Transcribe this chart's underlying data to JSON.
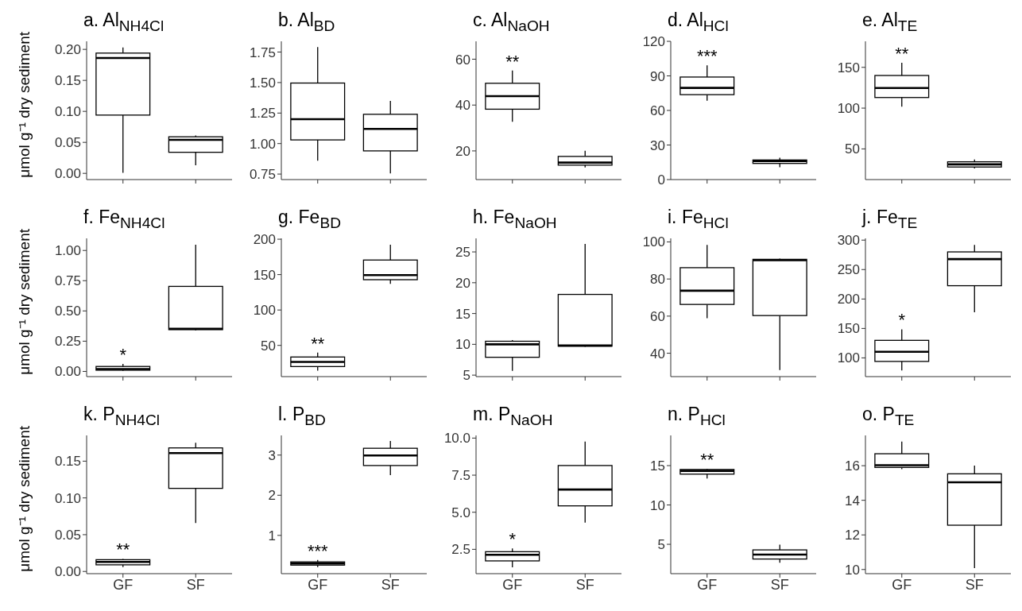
{
  "chart_data": [
    {
      "type": "box",
      "title": "a. Al$_{NH4Cl}$",
      "ylabel": "μmol g⁻¹ dry sediment",
      "categories": [
        null,
        null
      ],
      "ylim": [
        -0.01,
        0.213
      ],
      "yticks": [
        {
          "value": 0,
          "label": "0.00"
        },
        {
          "value": 0.05,
          "label": "0.05"
        },
        {
          "value": 0.1,
          "label": "0.10"
        },
        {
          "value": 0.15,
          "label": "0.15"
        },
        {
          "value": 0.2,
          "label": "0.20"
        }
      ],
      "boxes": [
        {
          "low": 0.001,
          "q1": 0.094,
          "median": 0.186,
          "q3": 0.194,
          "high": 0.203
        },
        {
          "low": 0.013,
          "q1": 0.034,
          "median": 0.054,
          "q3": 0.059,
          "high": 0.061
        }
      ]
    },
    {
      "type": "box",
      "title": "b. Al$_{BD}$",
      "categories": [
        null,
        null
      ],
      "ylim": [
        0.705,
        1.838
      ],
      "yticks": [
        {
          "value": 0.75,
          "label": "0.75"
        },
        {
          "value": 1,
          "label": "1.00"
        },
        {
          "value": 1.25,
          "label": "1.25"
        },
        {
          "value": 1.5,
          "label": "1.50"
        },
        {
          "value": 1.75,
          "label": "1.75"
        }
      ],
      "boxes": [
        {
          "low": 0.86,
          "q1": 1.03,
          "median": 1.2,
          "q3": 1.496,
          "high": 1.79
        },
        {
          "low": 0.755,
          "q1": 0.94,
          "median": 1.12,
          "q3": 1.24,
          "high": 1.35
        }
      ]
    },
    {
      "type": "box",
      "title": "c. Al$_{NaOH}$",
      "categories": [
        null,
        null
      ],
      "ylim": [
        7.5,
        67.8
      ],
      "yticks": [
        20,
        40,
        60
      ],
      "boxes": [
        {
          "low": 32.7,
          "q1": 38.2,
          "median": 43.9,
          "q3": 49.5,
          "high": 55.1
        },
        {
          "low": 12.8,
          "q1": 13.8,
          "median": 14.9,
          "q3": 17.6,
          "high": 20.1
        }
      ],
      "annotations": [
        "**"
      ]
    },
    {
      "type": "box",
      "title": "d. Al$_{HCl}$",
      "categories": [
        null,
        null
      ],
      "ylim": [
        0,
        120
      ],
      "yticks": [
        0,
        30,
        60,
        90,
        120
      ],
      "boxes": [
        {
          "low": 68.4,
          "q1": 73.7,
          "median": 79.6,
          "q3": 89,
          "high": 99.2
        },
        {
          "low": 10.7,
          "q1": 14,
          "median": 16,
          "q3": 17,
          "high": 19
        }
      ],
      "annotations": [
        "***"
      ]
    },
    {
      "type": "box",
      "title": "e. Al$_{TE}$",
      "categories": [
        null,
        null
      ],
      "ylim": [
        12.4,
        181.9
      ],
      "yticks": [
        50,
        100,
        150
      ],
      "boxes": [
        {
          "low": 101.8,
          "q1": 113,
          "median": 124.6,
          "q3": 140,
          "high": 155.7
        },
        {
          "low": 26,
          "q1": 27.8,
          "median": 31,
          "q3": 34.2,
          "high": 37
        }
      ],
      "annotations": [
        "**"
      ]
    },
    {
      "type": "box",
      "title": "f. Fe$_{NH4Cl}$",
      "ylabel": "μmol g⁻¹ dry sediment",
      "categories": [
        null,
        null
      ],
      "ylim": [
        -0.043,
        1.1
      ],
      "yticks": [
        {
          "value": 0,
          "label": "0.00"
        },
        {
          "value": 0.25,
          "label": "0.25"
        },
        {
          "value": 0.5,
          "label": "0.50"
        },
        {
          "value": 0.75,
          "label": "0.75"
        },
        {
          "value": 1,
          "label": "1.00"
        }
      ],
      "boxes": [
        {
          "low": 0.005,
          "q1": 0.01,
          "median": 0.019,
          "q3": 0.041,
          "high": 0.062
        },
        {
          "low": 0.34,
          "q1": 0.345,
          "median": 0.353,
          "q3": 0.703,
          "high": 1.048
        }
      ],
      "annotations": [
        "*"
      ]
    },
    {
      "type": "box",
      "title": "g. Fe$_{BD}$",
      "categories": [
        null,
        null
      ],
      "ylim": [
        5.9,
        201.2
      ],
      "yticks": [
        50,
        100,
        150,
        200
      ],
      "boxes": [
        {
          "low": 14.4,
          "q1": 20.1,
          "median": 26.7,
          "q3": 33.6,
          "high": 39.8
        },
        {
          "low": 137,
          "q1": 142.8,
          "median": 149.3,
          "q3": 170.6,
          "high": 192.2
        }
      ],
      "annotations": [
        "**"
      ]
    },
    {
      "type": "box",
      "title": "h. Fe$_{NaOH}$",
      "categories": [
        null,
        null
      ],
      "ylim": [
        4.76,
        27.2
      ],
      "yticks": [
        5,
        10,
        15,
        20,
        25
      ],
      "boxes": [
        {
          "low": 5.7,
          "q1": 7.9,
          "median": 10,
          "q3": 10.5,
          "high": 10.7
        },
        {
          "low": 9.6,
          "q1": 9.7,
          "median": 9.8,
          "q3": 18.1,
          "high": 26.3
        }
      ]
    },
    {
      "type": "box",
      "title": "i. Fe$_{HCl}$",
      "categories": [
        null,
        null
      ],
      "ylim": [
        27.4,
        101.9
      ],
      "yticks": [
        40,
        60,
        80,
        100
      ],
      "boxes": [
        {
          "low": 58.9,
          "q1": 66.3,
          "median": 73.7,
          "q3": 86.1,
          "high": 98.4
        },
        {
          "low": 30.9,
          "q1": 60.3,
          "median": 90.1,
          "q3": 90.6,
          "high": 91
        }
      ]
    },
    {
      "type": "box",
      "title": "j. Fe$_{TE}$",
      "categories": [
        null,
        null
      ],
      "ylim": [
        68.2,
        303
      ],
      "yticks": [
        100,
        150,
        200,
        250,
        300
      ],
      "boxes": [
        {
          "low": 78.7,
          "q1": 94,
          "median": 110.4,
          "q3": 129.8,
          "high": 148.6
        },
        {
          "low": 177.4,
          "q1": 222.6,
          "median": 267.7,
          "q3": 280,
          "high": 292
        }
      ],
      "annotations": [
        "*"
      ]
    },
    {
      "type": "box",
      "title": "k. P$_{NH4Cl}$",
      "ylabel": "μmol g⁻¹ dry sediment",
      "categories": [
        "GF",
        "SF"
      ],
      "ylim": [
        -0.003,
        0.185
      ],
      "yticks": [
        {
          "value": 0,
          "label": "0.00"
        },
        {
          "value": 0.05,
          "label": "0.05"
        },
        {
          "value": 0.1,
          "label": "0.10"
        },
        {
          "value": 0.15,
          "label": "0.15"
        }
      ],
      "boxes": [
        {
          "low": 0.006,
          "q1": 0.009,
          "median": 0.013,
          "q3": 0.016,
          "high": 0.017
        },
        {
          "low": 0.066,
          "q1": 0.113,
          "median": 0.161,
          "q3": 0.168,
          "high": 0.175
        }
      ],
      "annotations": [
        "**"
      ]
    },
    {
      "type": "box",
      "title": "l. P$_{BD}$",
      "categories": [
        "GF",
        "SF"
      ],
      "ylim": [
        0.047,
        3.49
      ],
      "yticks": [
        1,
        2,
        3
      ],
      "boxes": [
        {
          "low": 0.21,
          "q1": 0.26,
          "median": 0.3,
          "q3": 0.34,
          "high": 0.39
        },
        {
          "low": 2.5,
          "q1": 2.74,
          "median": 2.99,
          "q3": 3.17,
          "high": 3.35
        }
      ],
      "annotations": [
        "***"
      ]
    },
    {
      "type": "box",
      "title": "m. P$_{NaOH}$",
      "categories": [
        "GF",
        "SF"
      ],
      "ylim": [
        0.86,
        10.18
      ],
      "yticks": [
        {
          "value": 2.5,
          "label": "2.5"
        },
        {
          "value": 5,
          "label": "5.0"
        },
        {
          "value": 7.5,
          "label": "7.5"
        },
        {
          "value": 10,
          "label": "10.0"
        }
      ],
      "boxes": [
        {
          "low": 1.29,
          "q1": 1.72,
          "median": 2.13,
          "q3": 2.34,
          "high": 2.56
        },
        {
          "low": 4.3,
          "q1": 5.43,
          "median": 6.53,
          "q3": 8.15,
          "high": 9.76
        }
      ],
      "annotations": [
        "*"
      ]
    },
    {
      "type": "box",
      "title": "n. P$_{HCl}$",
      "categories": [
        "GF",
        "SF"
      ],
      "ylim": [
        1.27,
        18.84
      ],
      "yticks": [
        5,
        10,
        15
      ],
      "boxes": [
        {
          "low": 13.36,
          "q1": 13.92,
          "median": 14.33,
          "q3": 14.51,
          "high": 14.6
        },
        {
          "low": 2.65,
          "q1": 3.13,
          "median": 3.7,
          "q3": 4.29,
          "high": 4.96
        }
      ],
      "annotations": [
        "**"
      ]
    },
    {
      "type": "box",
      "title": "o. P$_{TE}$",
      "categories": [
        "GF",
        "SF"
      ],
      "ylim": [
        9.76,
        17.75
      ],
      "yticks": [
        10,
        12,
        14,
        16
      ],
      "boxes": [
        {
          "low": 15.8,
          "q1": 15.9,
          "median": 16.03,
          "q3": 16.69,
          "high": 17.39
        },
        {
          "low": 10.08,
          "q1": 12.56,
          "median": 15.04,
          "q3": 15.53,
          "high": 16
        }
      ]
    }
  ]
}
